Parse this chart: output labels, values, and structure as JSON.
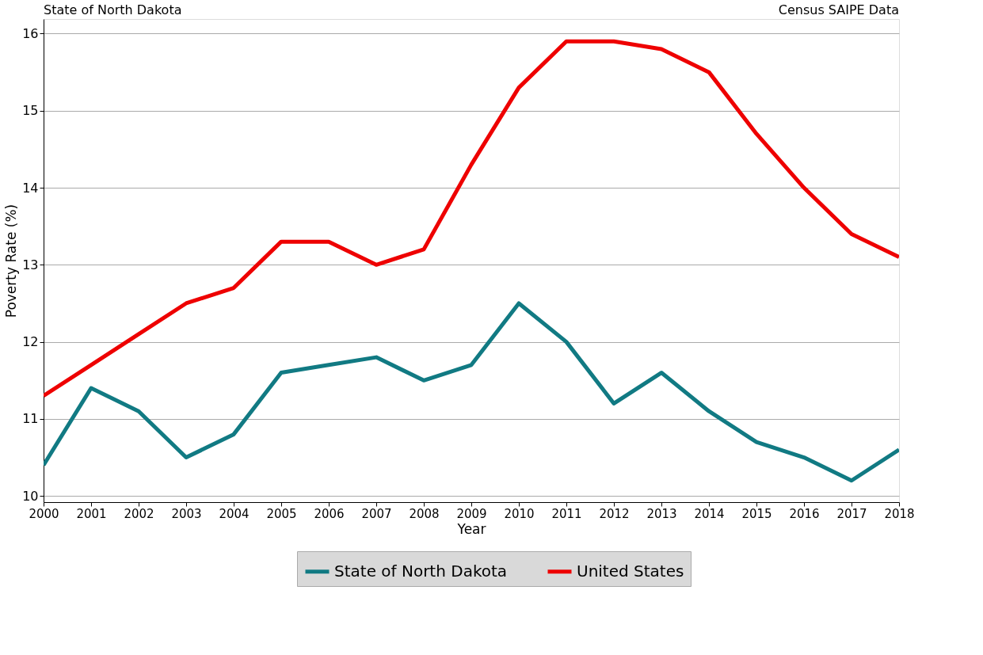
{
  "chart_data": {
    "type": "line",
    "xlabel": "Year",
    "ylabel": "Poverty Rate (%)",
    "annotations": [
      "State of North Dakota",
      "Census SAIPE Data"
    ],
    "x": [
      2000,
      2001,
      2002,
      2003,
      2004,
      2005,
      2006,
      2007,
      2008,
      2009,
      2010,
      2011,
      2012,
      2013,
      2014,
      2015,
      2016,
      2017,
      2018
    ],
    "series": [
      {
        "name": "State of North Dakota",
        "color": "#117a83",
        "values": [
          10.4,
          11.4,
          11.1,
          10.5,
          10.8,
          11.6,
          11.7,
          11.8,
          11.5,
          11.7,
          12.5,
          12.0,
          11.2,
          11.6,
          11.1,
          10.7,
          10.5,
          10.2,
          10.6
        ]
      },
      {
        "name": "United States",
        "color": "#ee0000",
        "values": [
          11.3,
          11.7,
          12.1,
          12.5,
          12.7,
          13.3,
          13.3,
          13.0,
          13.2,
          14.3,
          15.3,
          15.9,
          15.9,
          15.8,
          15.5,
          14.7,
          14.0,
          13.4,
          13.1
        ]
      }
    ],
    "xlim": [
      2000,
      2018
    ],
    "xticks": [
      2000,
      2001,
      2002,
      2003,
      2004,
      2005,
      2006,
      2007,
      2008,
      2009,
      2010,
      2011,
      2012,
      2013,
      2014,
      2015,
      2016,
      2017,
      2018
    ],
    "ylim": [
      9.92,
      16.19
    ],
    "yticks": [
      10,
      11,
      12,
      13,
      14,
      15,
      16
    ],
    "grid": "y",
    "legend": "bottom",
    "line_style": "solid",
    "marker": "none"
  }
}
